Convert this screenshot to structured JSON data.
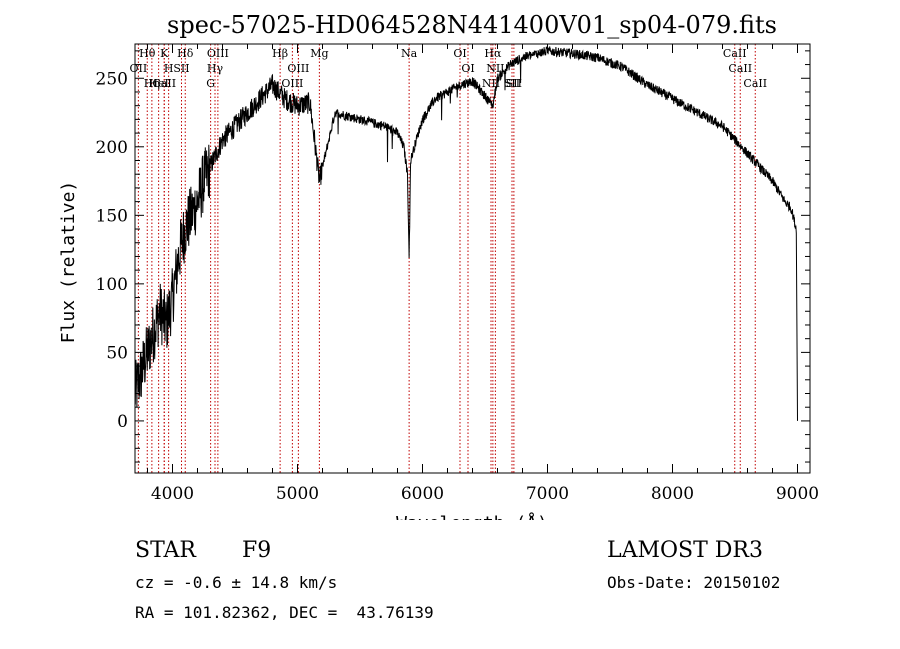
{
  "chart_data": {
    "type": "line",
    "title": "spec-57025-HD064528N441400V01_sp04-079.fits",
    "xlabel": "Wavelength (Å)",
    "ylabel": "Flux (relative)",
    "xlim": [
      3700,
      9100
    ],
    "ylim": [
      -38,
      275
    ],
    "xticks": [
      4000,
      5000,
      6000,
      7000,
      8000,
      9000
    ],
    "yticks": [
      0,
      50,
      100,
      150,
      200,
      250
    ],
    "xtick_labels": [
      "4000",
      "5000",
      "6000",
      "7000",
      "8000",
      "9000"
    ],
    "ytick_labels": [
      "0",
      "50",
      "100",
      "150",
      "200",
      "250"
    ],
    "spectrum_anchors": {
      "wavelength": [
        3700,
        3750,
        3800,
        3850,
        3900,
        3950,
        4000,
        4050,
        4100,
        4150,
        4200,
        4250,
        4300,
        4350,
        4400,
        4500,
        4600,
        4700,
        4800,
        4850,
        4900,
        5000,
        5100,
        5175,
        5300,
        5500,
        5700,
        5800,
        5850,
        5880,
        5893,
        5905,
        5950,
        6000,
        6100,
        6200,
        6300,
        6400,
        6563,
        6600,
        6700,
        6800,
        7000,
        7200,
        7400,
        7600,
        7800,
        8000,
        8200,
        8400,
        8500,
        8600,
        8700,
        8800,
        8900,
        8950,
        8990,
        9000
      ],
      "flux": [
        20,
        35,
        50,
        65,
        80,
        70,
        90,
        120,
        140,
        150,
        160,
        175,
        185,
        195,
        205,
        215,
        225,
        235,
        245,
        240,
        235,
        230,
        232,
        175,
        225,
        220,
        215,
        210,
        200,
        180,
        120,
        190,
        205,
        220,
        235,
        240,
        245,
        248,
        230,
        250,
        260,
        265,
        270,
        268,
        265,
        258,
        245,
        235,
        225,
        215,
        205,
        195,
        185,
        175,
        160,
        155,
        140,
        0
      ]
    },
    "lines": [
      {
        "name": "Hθ",
        "wavelength": 3798
      },
      {
        "name": "OII",
        "wavelength": 3727
      },
      {
        "name": "CaII",
        "wavelength": 3934
      },
      {
        "name": "K",
        "wavelength": 3934
      },
      {
        "name": "HeI",
        "wavelength": 3889
      },
      {
        "name": "Hη",
        "wavelength": 3835
      },
      {
        "name": "SII",
        "wavelength": 4072
      },
      {
        "name": "H",
        "wavelength": 3969
      },
      {
        "name": "Hδ",
        "wavelength": 4102
      },
      {
        "name": "OIII",
        "wavelength": 4363
      },
      {
        "name": "Hγ",
        "wavelength": 4340
      },
      {
        "name": "G",
        "wavelength": 4305
      },
      {
        "name": "Hβ",
        "wavelength": 4861
      },
      {
        "name": "OIII",
        "wavelength": 5007
      },
      {
        "name": "OIII",
        "wavelength": 4959
      },
      {
        "name": "Mg",
        "wavelength": 5175
      },
      {
        "name": "Na",
        "wavelength": 5893
      },
      {
        "name": "OI",
        "wavelength": 6300
      },
      {
        "name": "OI",
        "wavelength": 6364
      },
      {
        "name": "Hα",
        "wavelength": 6563
      },
      {
        "name": "NII",
        "wavelength": 6548
      },
      {
        "name": "NII",
        "wavelength": 6583
      },
      {
        "name": "SII",
        "wavelength": 6716
      },
      {
        "name": "SII",
        "wavelength": 6731
      },
      {
        "name": "CaII",
        "wavelength": 8498
      },
      {
        "name": "CaII",
        "wavelength": 8542
      },
      {
        "name": "CaII",
        "wavelength": 8662
      }
    ]
  },
  "info": {
    "object_class": "STAR",
    "subclass": "F9",
    "survey": "LAMOST DR3",
    "cz_line": "cz = -0.6 ± 14.8 km/s",
    "obs_date": "Obs-Date: 20150102",
    "coords": "RA = 101.82362, DEC =  43.76139"
  },
  "colors": {
    "spectrum": "#000000",
    "line_marker": "#c00000",
    "axis": "#000000"
  }
}
